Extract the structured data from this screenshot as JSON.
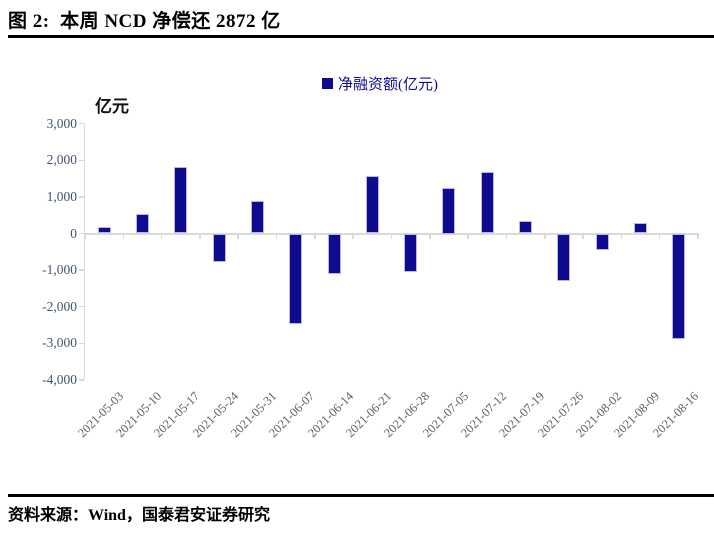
{
  "figure": {
    "title": "图 2:  本周 NCD 净偿还 2872 亿",
    "source": "资料来源：Wind，国泰君安证券研究"
  },
  "style": {
    "bar_fill": "#0e0b8e",
    "bar_border": "#b9b7e8",
    "axis_line": "#d9d9d9",
    "y_label_color": "#44546a",
    "x_label_color": "#5a5f69",
    "legend_text_color": "#0e0b8e",
    "unit_label_color": "#111111"
  },
  "chart_data": {
    "type": "bar",
    "title": "本周 NCD 净偿还 2872 亿",
    "legend": [
      "净融资额(亿元)"
    ],
    "legend_position": "top-center",
    "unit_label": "亿元",
    "grid": false,
    "categories": [
      "2021-05-03",
      "2021-05-10",
      "2021-05-17",
      "2021-05-24",
      "2021-05-31",
      "2021-06-07",
      "2021-06-14",
      "2021-06-21",
      "2021-06-28",
      "2021-07-05",
      "2021-07-12",
      "2021-07-19",
      "2021-07-26",
      "2021-08-02",
      "2021-08-09",
      "2021-08-16"
    ],
    "values": [
      180,
      520,
      1830,
      -790,
      880,
      -2470,
      -1110,
      1560,
      -1040,
      1250,
      1690,
      330,
      -1290,
      -440,
      300,
      -2872
    ],
    "ylabel": "亿元",
    "xlabel": "",
    "ylim": [
      -4000,
      3000
    ],
    "y_ticks": [
      3000,
      2000,
      1000,
      0,
      -1000,
      -2000,
      -3000,
      -4000
    ],
    "y_tick_labels": [
      "3,000",
      "2,000",
      "1,000",
      "0",
      "-1,000",
      "-2,000",
      "-3,000",
      "-4,000"
    ]
  }
}
